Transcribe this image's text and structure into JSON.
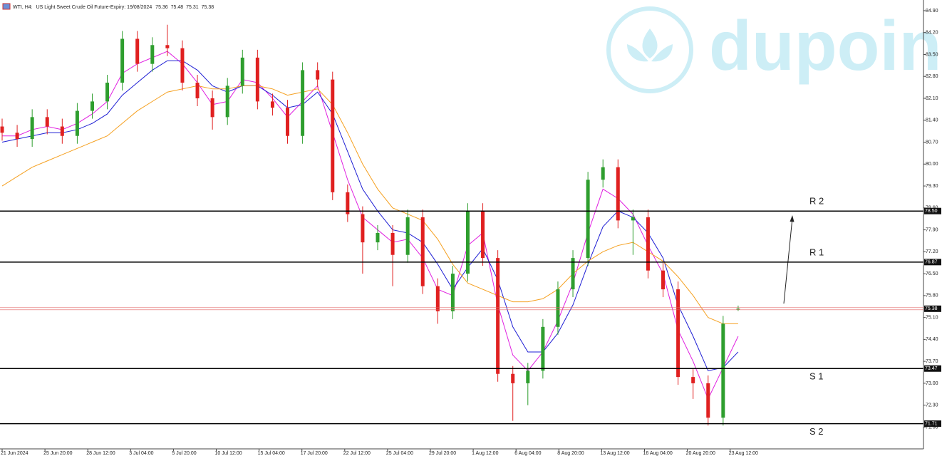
{
  "chart_data": {
    "type": "candlestick",
    "symbol": "WTI, H4:",
    "description": "US Light Sweet Crude Oil Future-Expiry: 19/08/2024",
    "watermark": "dupoin",
    "up_color": "#2e9e2e",
    "down_color": "#e02020",
    "ylim": [
      70.95,
      85.24
    ],
    "yticks": [
      {
        "value": 84.9,
        "label": "84.90"
      },
      {
        "value": 84.2,
        "label": "84.20"
      },
      {
        "value": 83.5,
        "label": "83.50"
      },
      {
        "value": 82.8,
        "label": "82.80"
      },
      {
        "value": 82.1,
        "label": "82.10"
      },
      {
        "value": 81.4,
        "label": "81.40"
      },
      {
        "value": 80.7,
        "label": "80.70"
      },
      {
        "value": 80,
        "label": "80.00"
      },
      {
        "value": 79.3,
        "label": "79.30"
      },
      {
        "value": 78.6,
        "label": "78.60"
      },
      {
        "value": 77.9,
        "label": "77.90"
      },
      {
        "value": 77.2,
        "label": "77.20"
      },
      {
        "value": 76.5,
        "label": "76.50"
      },
      {
        "value": 75.8,
        "label": "75.80"
      },
      {
        "value": 75.1,
        "label": "75.10"
      },
      {
        "value": 74.4,
        "label": "74.40"
      },
      {
        "value": 73.7,
        "label": "73.70"
      },
      {
        "value": 73,
        "label": "73.00"
      },
      {
        "value": 72.3,
        "label": "72.30"
      },
      {
        "value": 71.6,
        "label": "71.60"
      }
    ],
    "x_labels": [
      "21 Jun 2024",
      "25 Jun 20:00",
      "28 Jun 12:00",
      "3 Jul 04:00",
      "5 Jul 20:00",
      "10 Jul 12:00",
      "15 Jul 04:00",
      "17 Jul 20:00",
      "22 Jul 12:00",
      "25 Jul 04:00",
      "29 Jul 20:00",
      "1 Aug 12:00",
      "6 Aug 04:00",
      "8 Aug 20:00",
      "13 Aug 12:00",
      "16 Aug 04:00",
      "20 Aug 20:00",
      "23 Aug 12:00"
    ],
    "levels": [
      {
        "label": "R 2",
        "value": 78.5,
        "value_label": "78.50"
      },
      {
        "label": "R 1",
        "value": 76.87
      },
      {
        "label": "S 1",
        "value": 73.47
      },
      {
        "label": "S 2",
        "value": 71.71
      }
    ],
    "current_price": 75.38,
    "current_color": "#e06060",
    "ohlc": [
      [
        81.2,
        81.45,
        80.75,
        81.0
      ],
      [
        81.0,
        81.25,
        80.55,
        80.8
      ],
      [
        80.8,
        81.75,
        80.55,
        81.5
      ],
      [
        81.5,
        81.75,
        80.95,
        81.2
      ],
      [
        81.2,
        81.45,
        80.65,
        80.9
      ],
      [
        80.9,
        81.95,
        80.65,
        81.7
      ],
      [
        81.7,
        82.25,
        81.45,
        82.0
      ],
      [
        82.0,
        82.85,
        81.75,
        82.6
      ],
      [
        82.6,
        84.25,
        82.35,
        84.0
      ],
      [
        84.0,
        84.25,
        82.95,
        83.2
      ],
      [
        83.2,
        84.05,
        82.95,
        83.8
      ],
      [
        83.8,
        84.45,
        83.45,
        83.7
      ],
      [
        83.7,
        83.95,
        82.35,
        82.6
      ],
      [
        82.6,
        82.85,
        81.85,
        82.1
      ],
      [
        82.1,
        82.35,
        81.1,
        81.5
      ],
      [
        81.5,
        82.75,
        81.25,
        82.5
      ],
      [
        82.5,
        83.65,
        82.25,
        83.4
      ],
      [
        83.4,
        83.65,
        81.75,
        82.0
      ],
      [
        82.0,
        82.25,
        81.55,
        81.8
      ],
      [
        81.8,
        82.05,
        80.65,
        80.9
      ],
      [
        80.9,
        83.25,
        80.65,
        83.0
      ],
      [
        83.0,
        83.25,
        82.45,
        82.7
      ],
      [
        82.7,
        82.95,
        78.85,
        79.1
      ],
      [
        79.1,
        79.35,
        78.15,
        78.4
      ],
      [
        78.4,
        78.65,
        76.5,
        77.5
      ],
      [
        77.5,
        78.05,
        77.25,
        77.8
      ],
      [
        77.8,
        78.05,
        76.1,
        77.1
      ],
      [
        77.1,
        78.55,
        76.85,
        78.3
      ],
      [
        78.3,
        78.55,
        75.85,
        76.1
      ],
      [
        76.1,
        76.35,
        74.9,
        75.3
      ],
      [
        75.3,
        76.75,
        75.05,
        76.5
      ],
      [
        76.5,
        78.75,
        76.25,
        78.5
      ],
      [
        78.5,
        78.75,
        76.75,
        77.0
      ],
      [
        77.0,
        77.25,
        73.05,
        73.3
      ],
      [
        73.3,
        73.55,
        71.8,
        73.0
      ],
      [
        73.0,
        73.65,
        72.3,
        73.4
      ],
      [
        73.4,
        75.05,
        73.15,
        74.8
      ],
      [
        74.8,
        76.25,
        74.55,
        76.0
      ],
      [
        76.0,
        77.25,
        75.75,
        77.0
      ],
      [
        77.0,
        79.75,
        76.75,
        79.5
      ],
      [
        79.5,
        80.15,
        79.25,
        79.9
      ],
      [
        79.9,
        80.15,
        77.95,
        78.2
      ],
      [
        78.2,
        78.55,
        77.1,
        78.3
      ],
      [
        78.3,
        78.55,
        76.35,
        76.6
      ],
      [
        76.6,
        76.85,
        75.75,
        76.0
      ],
      [
        76.0,
        76.25,
        72.95,
        73.2
      ],
      [
        73.2,
        73.45,
        72.5,
        73.0
      ],
      [
        73.0,
        73.25,
        71.65,
        71.9
      ],
      [
        71.9,
        75.15,
        71.65,
        74.9
      ],
      [
        75.36,
        75.48,
        75.31,
        75.38
      ]
    ],
    "series": [
      {
        "color": "#e020e0",
        "values": [
          80.9,
          80.9,
          81.1,
          81.2,
          81.1,
          81.3,
          81.6,
          82.0,
          82.9,
          83.2,
          83.4,
          83.6,
          83.2,
          82.6,
          81.9,
          82.0,
          82.7,
          82.6,
          82.1,
          81.5,
          82.0,
          82.5,
          81.0,
          79.5,
          78.3,
          77.9,
          77.5,
          77.6,
          77.0,
          76.0,
          75.8,
          77.4,
          77.8,
          75.5,
          73.9,
          73.4,
          74.0,
          75.0,
          76.2,
          77.8,
          79.2,
          78.9,
          78.4,
          77.4,
          76.5,
          74.7,
          73.7,
          72.5,
          73.5,
          74.5
        ]
      },
      {
        "color": "#1f1fd4",
        "values": [
          80.7,
          80.8,
          80.9,
          81.0,
          81.0,
          81.1,
          81.3,
          81.6,
          82.2,
          82.6,
          83.0,
          83.3,
          83.3,
          83.0,
          82.5,
          82.3,
          82.5,
          82.5,
          82.2,
          81.8,
          81.9,
          82.3,
          81.6,
          80.4,
          79.2,
          78.5,
          77.9,
          77.8,
          77.5,
          76.8,
          76.0,
          76.7,
          77.3,
          76.3,
          74.8,
          74.0,
          74.0,
          74.6,
          75.5,
          76.8,
          78.0,
          78.5,
          78.3,
          77.8,
          77.0,
          75.5,
          74.5,
          73.4,
          73.5,
          74.0
        ]
      },
      {
        "color": "#f5a020",
        "values": [
          79.3,
          79.6,
          79.9,
          80.1,
          80.3,
          80.5,
          80.7,
          80.9,
          81.3,
          81.7,
          82.0,
          82.3,
          82.4,
          82.5,
          82.4,
          82.4,
          82.5,
          82.5,
          82.4,
          82.2,
          82.3,
          82.4,
          81.9,
          81.0,
          80.0,
          79.2,
          78.6,
          78.4,
          78.2,
          77.6,
          76.8,
          76.2,
          76.0,
          75.8,
          75.6,
          75.6,
          75.7,
          76.0,
          76.5,
          76.9,
          77.2,
          77.4,
          77.5,
          77.2,
          76.9,
          76.4,
          75.8,
          75.1,
          74.9,
          74.9
        ]
      }
    ]
  }
}
